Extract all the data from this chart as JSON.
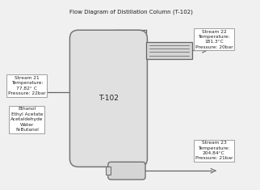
{
  "title": "Flow Diagram of Distillation Column (T-102)",
  "column_label": "T-102",
  "stream21_label": "Stream 21\nTemperature:\n77.82° C\nPressure: 22bar",
  "stream21_comp_label": "Ethanol\nEthyl Acetate\nAcetaldehyde\nWater\nN-Butanol",
  "stream22_label": "Stream 22\nTemperature:\n181.3°C\nPressure: 20bar",
  "stream23_label": "Stream 23\nTemperature:\n204.84°C\nPressure: 21bar",
  "bg_color": "#f0f0f0",
  "box_facecolor": "#ffffff",
  "box_edgecolor": "#999999",
  "line_color": "#666666",
  "col_facecolor": "#e0e0e0",
  "col_edgecolor": "#777777",
  "cond_facecolor": "#d5d5d5",
  "reb_facecolor": "#d5d5d5",
  "text_color": "#222222",
  "label_fontsize": 4.2,
  "col_label_fontsize": 6.5,
  "title_fontsize": 5.0
}
